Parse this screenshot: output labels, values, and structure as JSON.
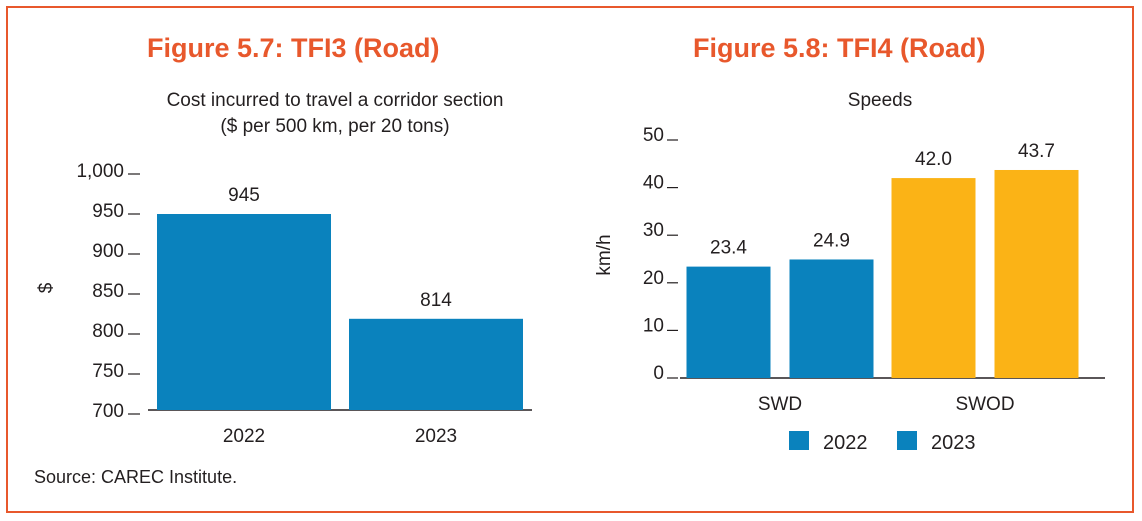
{
  "colors": {
    "accent": "#e8582c",
    "bar_blue": "#0a82bd",
    "bar_gold": "#fbb316",
    "text": "#231f20"
  },
  "fig1": {
    "title": "Figure 5.7: TFI3 (Road)"
  },
  "fig2": {
    "title": "Figure 5.8: TFI4 (Road)"
  },
  "source": "Source: CAREC Institute.",
  "chart_data": [
    {
      "type": "bar",
      "title": "Cost incurred to travel a corridor section",
      "subtitle": "($ per 500 km, per 20 tons)",
      "xlabel": "",
      "ylabel": "$",
      "categories": [
        "2022",
        "2023"
      ],
      "values": [
        945,
        814
      ],
      "data_labels": [
        "945",
        "814"
      ],
      "ylim": [
        700,
        1000
      ],
      "yticks": [
        700,
        750,
        800,
        850,
        900,
        950,
        1000
      ],
      "ytick_labels": [
        "700",
        "750",
        "800",
        "850",
        "900",
        "950",
        "1,000"
      ],
      "grid": false
    },
    {
      "type": "bar",
      "title": "Speeds",
      "xlabel": "",
      "ylabel": "km/h",
      "categories": [
        "SWD",
        "SWOD"
      ],
      "series": [
        {
          "name": "2022",
          "values": [
            23.4,
            42.0
          ],
          "labels": [
            "23.4",
            "42.0"
          ]
        },
        {
          "name": "2023",
          "values": [
            24.9,
            43.7
          ],
          "labels": [
            "24.9",
            "43.7"
          ]
        }
      ],
      "ylim": [
        0,
        50
      ],
      "yticks": [
        0,
        10,
        20,
        30,
        40,
        50
      ],
      "ytick_labels": [
        "0",
        "10",
        "20",
        "30",
        "40",
        "50"
      ],
      "legend": {
        "position": "bottom",
        "entries": [
          "2022",
          "2023"
        ]
      },
      "grid": false
    }
  ]
}
